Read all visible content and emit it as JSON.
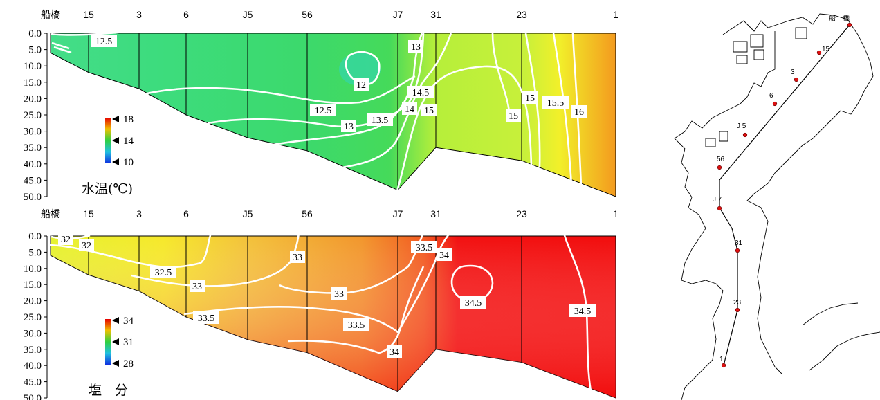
{
  "chart_data": [
    {
      "type": "heatmap",
      "title": "水温(℃)",
      "stations": [
        "船橋",
        "15",
        "3",
        "6",
        "J5",
        "56",
        "J7",
        "31",
        "23",
        "1"
      ],
      "yticks": [
        "0.0",
        "5.0",
        "10.0",
        "15.0",
        "20.0",
        "25.0",
        "30.0",
        "35.0",
        "40.0",
        "45.0",
        "50.0"
      ],
      "ylim": [
        0,
        50
      ],
      "bottom_depth": [
        6,
        12,
        17,
        25,
        32,
        36,
        48,
        35,
        39,
        50
      ],
      "colorbar": {
        "labels": [
          "18",
          "14",
          "10"
        ],
        "min": 10,
        "max": 18
      },
      "contours": [
        {
          "label": "12.5"
        },
        {
          "label": "13"
        },
        {
          "label": "12"
        },
        {
          "label": "14.5"
        },
        {
          "label": "12.5"
        },
        {
          "label": "14"
        },
        {
          "label": "15"
        },
        {
          "label": "15"
        },
        {
          "label": "15"
        },
        {
          "label": "15.5"
        },
        {
          "label": "16"
        },
        {
          "label": "13"
        },
        {
          "label": "13.5"
        }
      ]
    },
    {
      "type": "heatmap",
      "title": "塩　分",
      "stations": [
        "船橋",
        "15",
        "3",
        "6",
        "J5",
        "56",
        "J7",
        "31",
        "23",
        "1"
      ],
      "yticks": [
        "0.0",
        "5.0",
        "10.0",
        "15.0",
        "20.0",
        "25.0",
        "30.0",
        "35.0",
        "40.0",
        "45.0",
        "50.0"
      ],
      "ylim": [
        0,
        50
      ],
      "bottom_depth": [
        6,
        12,
        17,
        25,
        32,
        36,
        48,
        35,
        39,
        50
      ],
      "colorbar": {
        "labels": [
          "34",
          "31",
          "28"
        ],
        "min": 28,
        "max": 34
      },
      "contours": [
        {
          "label": "32"
        },
        {
          "label": "32"
        },
        {
          "label": "32.5"
        },
        {
          "label": "33"
        },
        {
          "label": "33"
        },
        {
          "label": "33"
        },
        {
          "label": "33.5"
        },
        {
          "label": "34"
        },
        {
          "label": "34.5"
        },
        {
          "label": "33.5"
        },
        {
          "label": "33.5"
        },
        {
          "label": "34"
        },
        {
          "label": "34.5"
        }
      ]
    }
  ],
  "map": {
    "stations": [
      "船　橋",
      "15",
      "3",
      "6",
      "J 5",
      "56",
      "J 7",
      "31",
      "23",
      "1"
    ]
  }
}
